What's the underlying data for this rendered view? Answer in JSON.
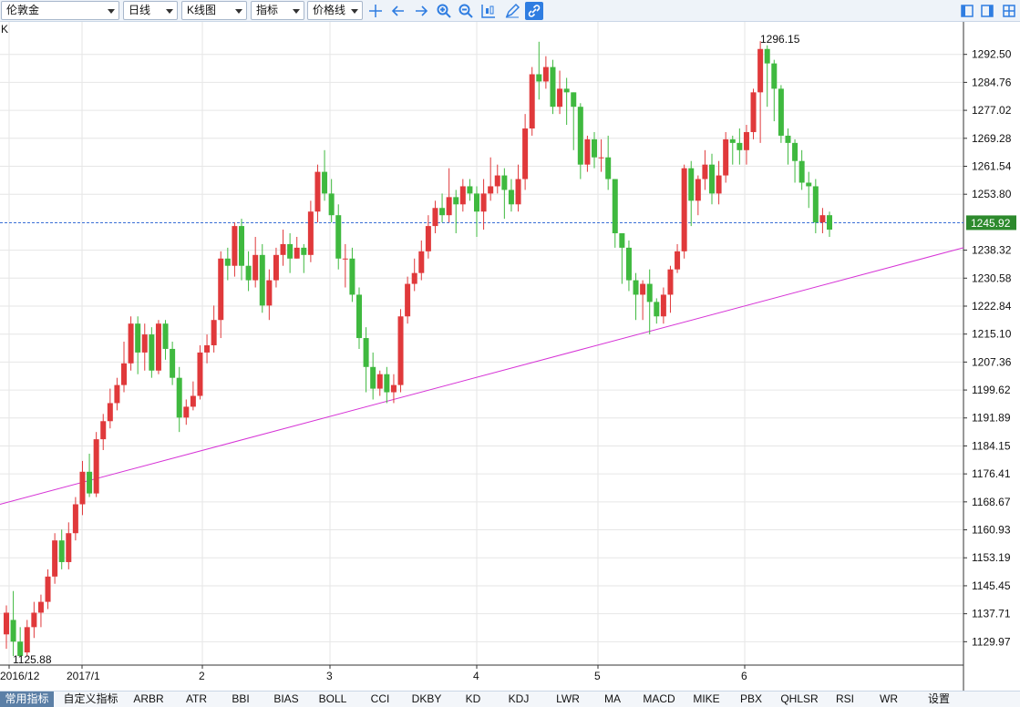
{
  "toolbar": {
    "symbol": "伦敦金",
    "period": "日线",
    "chart_type": "K线图",
    "indicator": "指标",
    "price_line": "价格线"
  },
  "chart_label": "K",
  "price_axis": {
    "labels": [
      "1292.50",
      "1284.76",
      "1277.02",
      "1269.28",
      "1261.54",
      "1253.80",
      "1238.32",
      "1230.58",
      "1222.84",
      "1215.10",
      "1207.36",
      "1199.62",
      "1191.89",
      "1184.15",
      "1176.41",
      "1168.67",
      "1160.93",
      "1153.19",
      "1145.45",
      "1137.71",
      "1129.97"
    ],
    "current_price": "1245.92",
    "current_price_color": "#2d8a2d"
  },
  "time_axis": {
    "labels": [
      "2016/12",
      "2017/1",
      "2",
      "3",
      "4",
      "5",
      "6"
    ]
  },
  "annotations": {
    "high": "1296.15",
    "low": "1125.88"
  },
  "colors": {
    "up": "#e0393b",
    "down": "#3fb93f",
    "trendline": "#d633d6",
    "price_line": "#3b6fd6"
  },
  "chart_data": {
    "type": "candlestick",
    "title": "",
    "ylim": [
      1123.5,
      1301.5
    ],
    "trendline": {
      "x_start": "2016/12",
      "y_start": 1168,
      "x_end": "2017/6",
      "y_end": 1239
    },
    "candles": [
      [
        1132,
        1138,
        1140,
        1128
      ],
      [
        1136,
        1130,
        1144,
        1126
      ],
      [
        1130,
        1126,
        1134,
        1125.88
      ],
      [
        1127,
        1134,
        1136,
        1125.88
      ],
      [
        1134,
        1138,
        1141,
        1131
      ],
      [
        1138,
        1141,
        1143,
        1134
      ],
      [
        1141,
        1148,
        1150,
        1139
      ],
      [
        1148,
        1158,
        1160,
        1146
      ],
      [
        1158,
        1152,
        1161,
        1150
      ],
      [
        1152,
        1160,
        1163,
        1150
      ],
      [
        1160,
        1168,
        1170,
        1158
      ],
      [
        1168,
        1177,
        1180,
        1165
      ],
      [
        1177,
        1171,
        1182,
        1170
      ],
      [
        1171,
        1186,
        1188,
        1170
      ],
      [
        1186,
        1191,
        1193,
        1183
      ],
      [
        1191,
        1196,
        1200,
        1189
      ],
      [
        1196,
        1201,
        1203,
        1194
      ],
      [
        1201,
        1207,
        1213,
        1199
      ],
      [
        1207,
        1218,
        1220,
        1205
      ],
      [
        1218,
        1210,
        1220,
        1204
      ],
      [
        1210,
        1215,
        1218,
        1205
      ],
      [
        1215,
        1205,
        1217,
        1203
      ],
      [
        1205,
        1218,
        1219,
        1204
      ],
      [
        1218,
        1211,
        1219,
        1208
      ],
      [
        1211,
        1203,
        1213,
        1201
      ],
      [
        1203,
        1192,
        1206,
        1188
      ],
      [
        1192,
        1195,
        1197,
        1190
      ],
      [
        1195,
        1198,
        1202,
        1194
      ],
      [
        1198,
        1210,
        1212,
        1197
      ],
      [
        1210,
        1212,
        1215,
        1207
      ],
      [
        1212,
        1219,
        1223,
        1210
      ],
      [
        1219,
        1236,
        1238,
        1214
      ],
      [
        1236,
        1234,
        1239,
        1230
      ],
      [
        1234,
        1245,
        1246,
        1231
      ],
      [
        1245,
        1234,
        1247,
        1230
      ],
      [
        1234,
        1230,
        1238,
        1227
      ],
      [
        1230,
        1237,
        1242,
        1228
      ],
      [
        1237,
        1223,
        1240,
        1221
      ],
      [
        1223,
        1230,
        1233,
        1219
      ],
      [
        1230,
        1237,
        1239,
        1228
      ],
      [
        1237,
        1240,
        1244,
        1234
      ],
      [
        1240,
        1236,
        1243,
        1232
      ],
      [
        1236,
        1239,
        1242,
        1236
      ],
      [
        1239,
        1237,
        1240,
        1232
      ],
      [
        1237,
        1249,
        1252,
        1235
      ],
      [
        1249,
        1260,
        1262,
        1246
      ],
      [
        1260,
        1254,
        1266,
        1252
      ],
      [
        1254,
        1248,
        1258,
        1246
      ],
      [
        1248,
        1236,
        1251,
        1233
      ],
      [
        1236,
        1236,
        1240,
        1228
      ],
      [
        1236,
        1226,
        1239,
        1224
      ],
      [
        1226,
        1214,
        1228,
        1211
      ],
      [
        1214,
        1206,
        1217,
        1199
      ],
      [
        1206,
        1200,
        1210,
        1197
      ],
      [
        1200,
        1204,
        1205,
        1198
      ],
      [
        1204,
        1199,
        1206,
        1196
      ],
      [
        1199,
        1201,
        1204,
        1196
      ],
      [
        1201,
        1220,
        1222,
        1199
      ],
      [
        1220,
        1229,
        1231,
        1218
      ],
      [
        1229,
        1232,
        1236,
        1227
      ],
      [
        1232,
        1238,
        1241,
        1230
      ],
      [
        1238,
        1245,
        1248,
        1236
      ],
      [
        1245,
        1250,
        1252,
        1243
      ],
      [
        1250,
        1248,
        1254,
        1246
      ],
      [
        1248,
        1253,
        1261,
        1246
      ],
      [
        1253,
        1251,
        1255,
        1243
      ],
      [
        1251,
        1256,
        1258,
        1249
      ],
      [
        1256,
        1254,
        1258,
        1252
      ],
      [
        1254,
        1249,
        1256,
        1242
      ],
      [
        1249,
        1254,
        1258,
        1244
      ],
      [
        1254,
        1256,
        1264,
        1252
      ],
      [
        1256,
        1259,
        1262,
        1254
      ],
      [
        1259,
        1255,
        1261,
        1247
      ],
      [
        1255,
        1251,
        1258,
        1249
      ],
      [
        1251,
        1258,
        1262,
        1249
      ],
      [
        1258,
        1272,
        1276,
        1255
      ],
      [
        1272,
        1287,
        1289,
        1270
      ],
      [
        1287,
        1285,
        1296,
        1280
      ],
      [
        1285,
        1289,
        1292,
        1283
      ],
      [
        1289,
        1278,
        1291,
        1276
      ],
      [
        1278,
        1283,
        1288,
        1276
      ],
      [
        1283,
        1282,
        1286,
        1273
      ],
      [
        1282,
        1278,
        1282,
        1266
      ],
      [
        1278,
        1262,
        1279,
        1258
      ],
      [
        1262,
        1269,
        1270,
        1260
      ],
      [
        1269,
        1264,
        1271,
        1261
      ],
      [
        1264,
        1264,
        1269,
        1260
      ],
      [
        1264,
        1258,
        1270,
        1255
      ],
      [
        1258,
        1243,
        1258,
        1239
      ],
      [
        1243,
        1239,
        1243,
        1229
      ],
      [
        1239,
        1230,
        1241,
        1227
      ],
      [
        1230,
        1226,
        1232,
        1219
      ],
      [
        1226,
        1229,
        1230,
        1219
      ],
      [
        1229,
        1224,
        1233,
        1215
      ],
      [
        1224,
        1220,
        1225,
        1218
      ],
      [
        1220,
        1226,
        1228,
        1218
      ],
      [
        1226,
        1233,
        1234,
        1221
      ],
      [
        1233,
        1238,
        1240,
        1232
      ],
      [
        1238,
        1261,
        1262,
        1236
      ],
      [
        1261,
        1252,
        1263,
        1245
      ],
      [
        1252,
        1258,
        1259,
        1248
      ],
      [
        1258,
        1262,
        1266,
        1255
      ],
      [
        1262,
        1254,
        1265,
        1251
      ],
      [
        1254,
        1259,
        1263,
        1251
      ],
      [
        1259,
        1269,
        1271,
        1257
      ],
      [
        1269,
        1268,
        1270,
        1262
      ],
      [
        1268,
        1266,
        1272,
        1262
      ],
      [
        1266,
        1271,
        1273,
        1262
      ],
      [
        1271,
        1282,
        1283,
        1269
      ],
      [
        1282,
        1294,
        1296.15,
        1268
      ],
      [
        1294,
        1290,
        1295,
        1278
      ],
      [
        1290,
        1283,
        1291,
        1274
      ],
      [
        1283,
        1270,
        1284,
        1268
      ],
      [
        1270,
        1268,
        1272,
        1262
      ],
      [
        1268,
        1263,
        1269,
        1257
      ],
      [
        1263,
        1257,
        1266,
        1255
      ],
      [
        1257,
        1256,
        1260,
        1250
      ],
      [
        1256,
        1246,
        1258,
        1243
      ],
      [
        1246,
        1248,
        1250,
        1243
      ],
      [
        1248,
        1244,
        1249,
        1242
      ]
    ]
  },
  "indicator_tabs": {
    "items": [
      "常用指标",
      "自定义指标",
      "ARBR",
      "ATR",
      "BBI",
      "BIAS",
      "BOLL",
      "CCI",
      "DKBY",
      "KD",
      "KDJ",
      "LWR",
      "MA",
      "MACD",
      "MIKE",
      "PBX",
      "QHLSR",
      "RSI",
      "WR",
      "设置"
    ],
    "active": 0
  }
}
